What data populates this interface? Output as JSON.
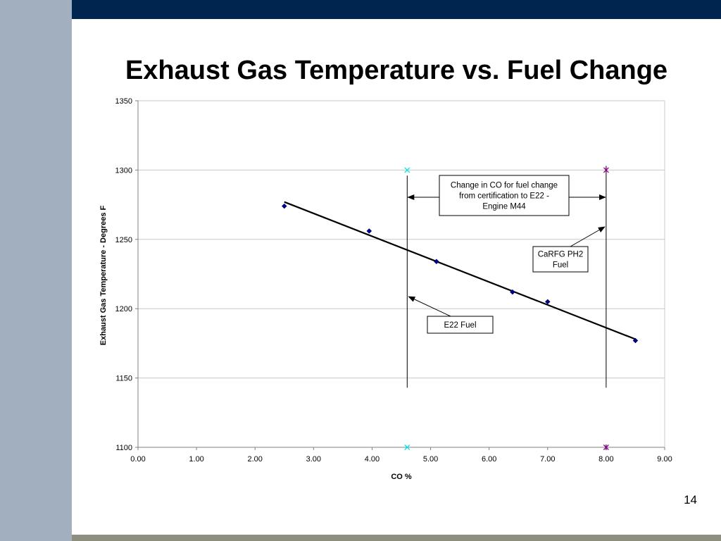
{
  "slide": {
    "title": "Exhaust Gas Temperature vs. Fuel Change",
    "page_number": "14",
    "colors": {
      "sidebar": "#a1afbe",
      "topbar": "#00264f",
      "bottombar": "#8e8e80",
      "series": "#000080",
      "marker_e22": "#00e5e5",
      "marker_carfg": "#800080"
    }
  },
  "chart_data": {
    "type": "scatter",
    "title": "",
    "xlabel": "CO %",
    "ylabel": "Exhaust Gas Temperature - Degrees F",
    "xlim": [
      0,
      9
    ],
    "ylim": [
      1100,
      1350
    ],
    "x_ticks": [
      "0.00",
      "1.00",
      "2.00",
      "3.00",
      "4.00",
      "5.00",
      "6.00",
      "7.00",
      "8.00",
      "9.00"
    ],
    "y_ticks": [
      "1100",
      "1150",
      "1200",
      "1250",
      "1300",
      "1350"
    ],
    "grid": "horizontal",
    "series": [
      {
        "marker": "diamond",
        "x": [
          2.5,
          3.95,
          5.1,
          6.4,
          7.0,
          8.5
        ],
        "y": [
          1274,
          1256,
          1234,
          1212,
          1205,
          1177
        ]
      }
    ],
    "trendline": {
      "x": [
        2.5,
        8.5
      ],
      "y": [
        1277,
        1178
      ]
    },
    "reference_lines": [
      {
        "x": 4.6,
        "marker": "x",
        "marker_y": [
          1300,
          1100
        ],
        "line_y": [
          1296,
          1143
        ]
      },
      {
        "x": 8.0,
        "marker": "star",
        "marker_y": [
          1300,
          1100
        ],
        "line_y": [
          1303,
          1143
        ]
      }
    ],
    "annotations": [
      {
        "lines": [
          "Change in CO for fuel change",
          "from certification to E22 -",
          "Engine M44"
        ]
      },
      {
        "lines": [
          "CaRFG PH2",
          "Fuel"
        ]
      },
      {
        "lines": [
          "E22 Fuel"
        ]
      }
    ]
  }
}
